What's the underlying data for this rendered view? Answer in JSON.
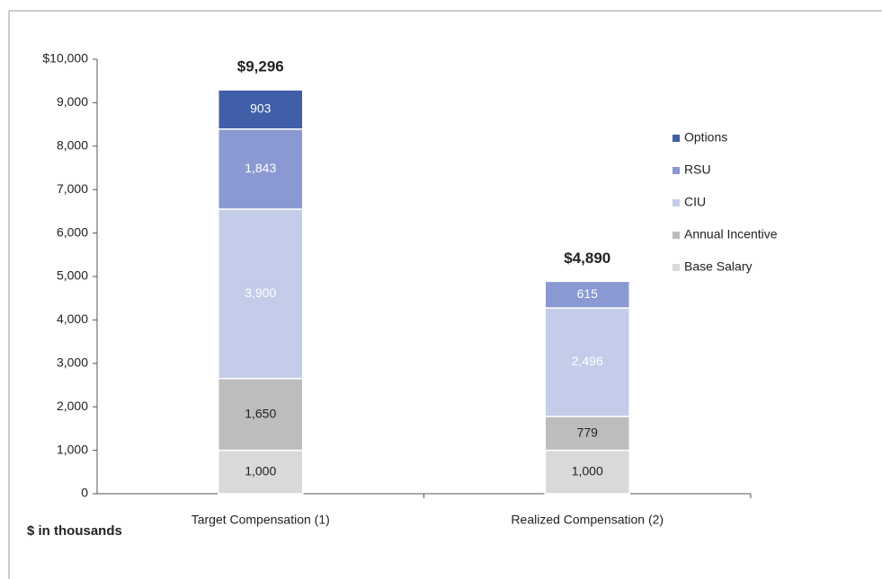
{
  "chart_data": {
    "type": "stacked_bar",
    "categories": [
      "Target Compensation (1)",
      "Realized Compensation (2)"
    ],
    "series": [
      {
        "name": "Base Salary",
        "color": "#d9d9d9",
        "values": [
          1000,
          1000
        ],
        "value_labels": [
          "1,000",
          "1,000"
        ],
        "label_color": "#222"
      },
      {
        "name": "Annual Incentive",
        "color": "#bdbdbd",
        "values": [
          1650,
          779
        ],
        "value_labels": [
          "1,650",
          "779"
        ],
        "label_color": "#222"
      },
      {
        "name": "CIU",
        "color": "#c3cde9",
        "values": [
          3900,
          2496
        ],
        "value_labels": [
          "3,900",
          "2,496"
        ],
        "label_color": "#ffffff"
      },
      {
        "name": "RSU",
        "color": "#8b99d2",
        "values": [
          1843,
          615
        ],
        "value_labels": [
          "1,843",
          "615"
        ],
        "label_color": "#ffffff"
      },
      {
        "name": "Options",
        "color": "#3f5fa8",
        "values": [
          903,
          null
        ],
        "value_labels": [
          "903",
          null
        ],
        "label_color": "#ffffff"
      }
    ],
    "totals": [
      9296,
      4890
    ],
    "total_labels": [
      "$9,296",
      "$4,890"
    ],
    "ylim": [
      0,
      10000
    ],
    "yticks": [
      0,
      {
        "value": 1000,
        "label": "1,000"
      },
      {
        "value": 2000,
        "label": "2,000"
      },
      {
        "value": 3000,
        "label": "3,000"
      },
      {
        "value": 4000,
        "label": "4,000"
      },
      {
        "value": 5000,
        "label": "5,000"
      },
      {
        "value": 6000,
        "label": "6,000"
      },
      {
        "value": 7000,
        "label": "7,000"
      },
      {
        "value": 8000,
        "label": "8,000"
      },
      {
        "value": 9000,
        "label": "9,000"
      },
      {
        "value": 10000,
        "label": "$10,000"
      }
    ],
    "axis_note": "$ in thousands",
    "legend": "right",
    "grid": false
  }
}
